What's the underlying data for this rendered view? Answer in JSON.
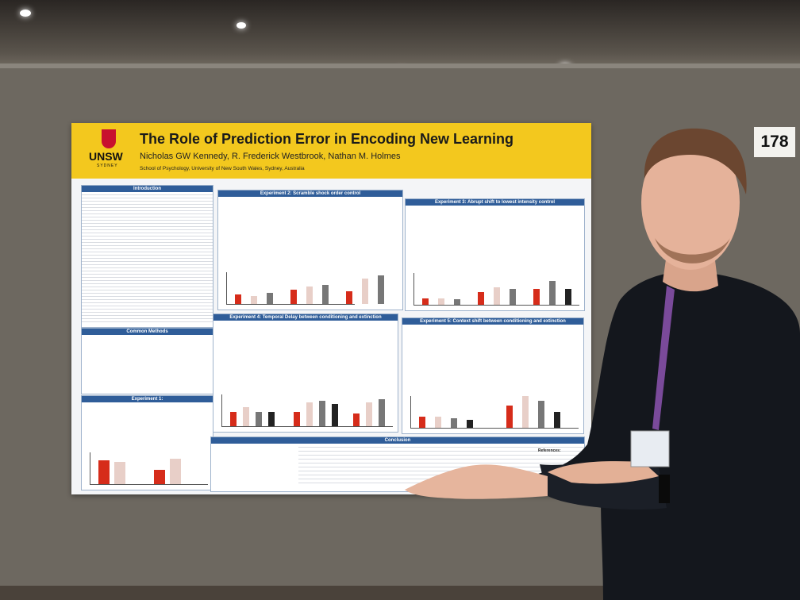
{
  "sign": "178",
  "poster": {
    "logo": {
      "name": "UNSW",
      "city": "SYDNEY"
    },
    "title": "The Role of Prediction Error in Encoding New Learning",
    "authors": "Nicholas GW Kennedy, R. Frederick Westbrook, Nathan M. Holmes",
    "affiliation": "School of Psychology, University of New South Wales, Sydney, Australia",
    "sections": [
      "Introduction",
      "Common Methods",
      "Experiment 1:",
      "Experiment 2: Scramble shock order control",
      "Experiment 3: Abrupt shift to lowest intensity control",
      "Experiment 4: Temporal Delay between conditioning and extinction",
      "Experiment 5: Context shift between conditioning and extinction",
      "Conclusion"
    ],
    "references": "References:"
  }
}
